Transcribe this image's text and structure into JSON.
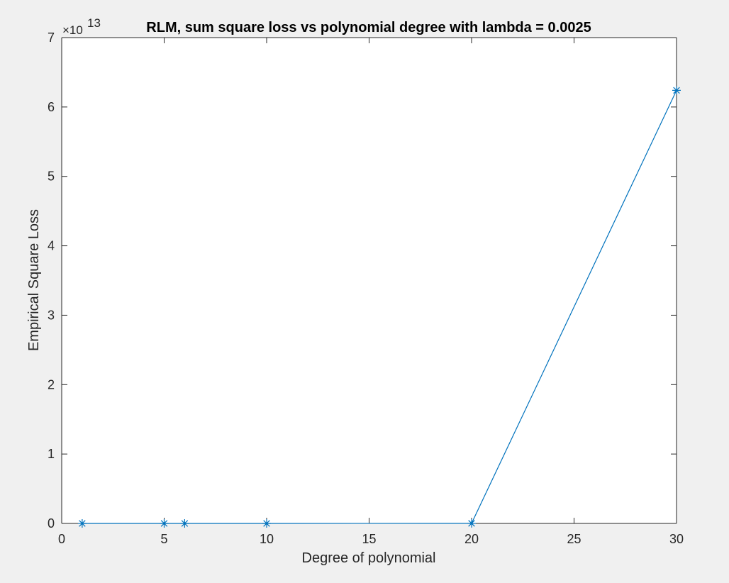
{
  "chart_data": {
    "type": "line",
    "title": "RLM, sum square loss vs polynomial degree with lambda = 0.0025",
    "xlabel": "Degree of polynomial",
    "ylabel": "Empirical Square Loss",
    "xlim": [
      0,
      30
    ],
    "ylim": [
      0,
      7
    ],
    "y_multiplier": {
      "base": "×10",
      "exponent": "13"
    },
    "xticks": [
      0,
      5,
      10,
      15,
      20,
      25,
      30
    ],
    "yticks": [
      0,
      1,
      2,
      3,
      4,
      5,
      6,
      7
    ],
    "xtick_labels": [
      "0",
      "5",
      "10",
      "15",
      "20",
      "25",
      "30"
    ],
    "ytick_labels": [
      "0",
      "1",
      "2",
      "3",
      "4",
      "5",
      "6",
      "7"
    ],
    "grid": false,
    "marker": "asterisk",
    "series": [
      {
        "color": "#0072bd",
        "x": [
          1,
          5,
          6,
          10,
          20,
          30
        ],
        "y": [
          0,
          0,
          0,
          0,
          0.001,
          6.24
        ]
      }
    ]
  }
}
